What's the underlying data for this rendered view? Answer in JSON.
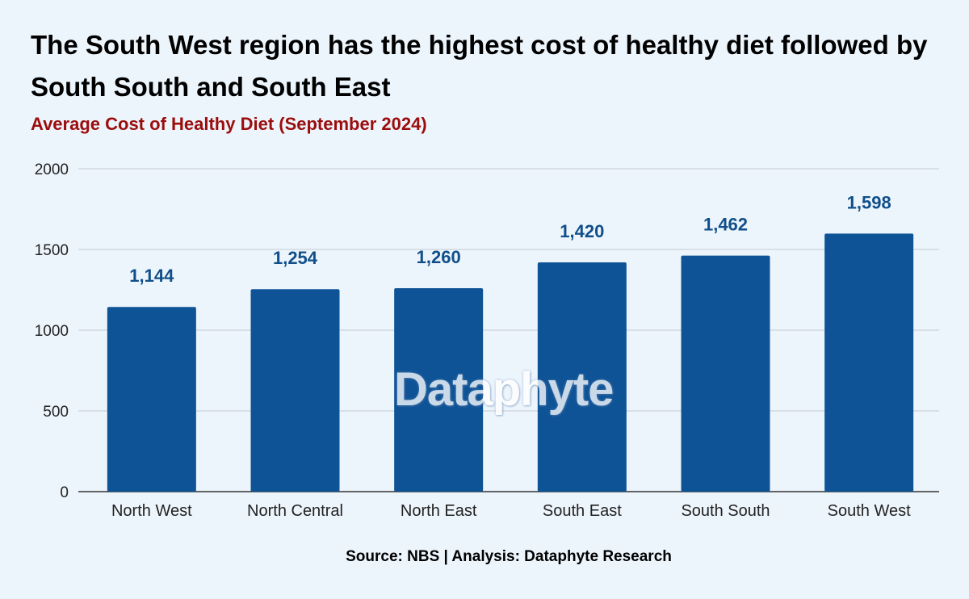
{
  "chart_data": {
    "type": "bar",
    "title": "The South West region has the highest cost of healthy diet followed by South South and South East",
    "subtitle": "Average Cost of Healthy Diet (September 2024)",
    "categories": [
      "North West",
      "North Central",
      "North East",
      "South East",
      "South South",
      "South West"
    ],
    "values": [
      1144,
      1254,
      1260,
      1420,
      1462,
      1598
    ],
    "data_labels": [
      "1,144",
      "1,254",
      "1,260",
      "1,420",
      "1,462",
      "1,598"
    ],
    "y_ticks": [
      "0",
      "500",
      "1000",
      "1500",
      "2000"
    ],
    "xlabel": "",
    "ylabel": "",
    "ylim": [
      0,
      2000
    ],
    "grid": true,
    "legend": "none",
    "source": "Source: NBS | Analysis: Dataphyte Research",
    "watermark": "Dataphyte",
    "colors": {
      "bar": "#0e5396",
      "data_label": "#104f8a",
      "title": "#000000",
      "subtitle": "#9b0d0d",
      "background": "#edf5fc",
      "grid": "#c4c9d0"
    }
  }
}
